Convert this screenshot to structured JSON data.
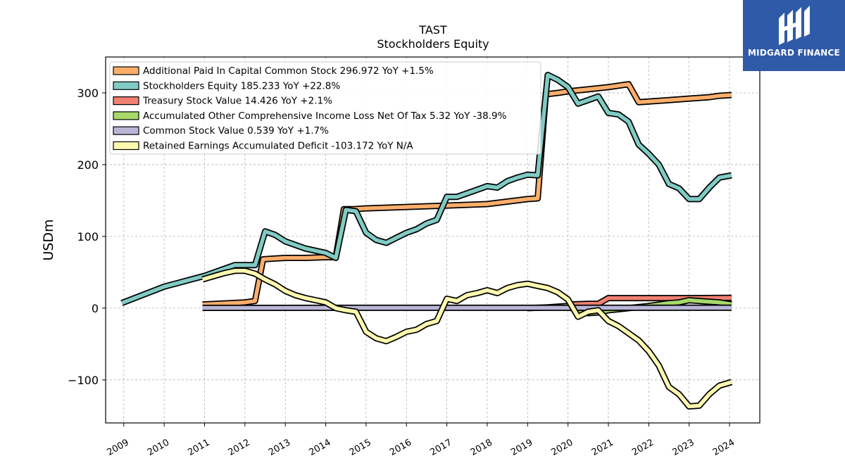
{
  "logo": {
    "text": "MIDGARD FINANCE",
    "bg_color": "#2f5aa8"
  },
  "chart_data": {
    "type": "line",
    "title": "TAST",
    "subtitle": "Stockholders  Equity",
    "ylabel": "USDm",
    "xlabel": "",
    "xlim": [
      2008.55,
      2024.75
    ],
    "ylim": [
      -160,
      350
    ],
    "x_ticks": [
      "2009",
      "2010",
      "2011",
      "2012",
      "2013",
      "2014",
      "2015",
      "2016",
      "2017",
      "2018",
      "2019",
      "2020",
      "2021",
      "2022",
      "2023",
      "2024"
    ],
    "y_ticks": [
      -100,
      0,
      100,
      200,
      300
    ],
    "grid": true,
    "legend_position": "top-left",
    "series": [
      {
        "name": "Additional Paid In Capital Common Stock",
        "legend": "Additional Paid In Capital Common Stock  296.972 YoY +1.5%",
        "color": "#fdae6b",
        "x": [
          2010.95,
          2012.0,
          2012.25,
          2012.45,
          2012.7,
          2013.0,
          2013.5,
          2014.0,
          2014.25,
          2014.45,
          2014.7,
          2015.0,
          2016.0,
          2017.0,
          2018.0,
          2019.0,
          2019.25,
          2019.45,
          2019.75,
          2020.0,
          2020.5,
          2021.0,
          2021.5,
          2021.75,
          2022.0,
          2022.5,
          2023.0,
          2023.5,
          2023.75,
          2024.05
        ],
        "y": [
          5,
          8,
          10,
          68,
          69,
          70,
          70,
          71,
          71,
          138,
          138,
          139,
          141,
          143,
          145,
          152,
          153,
          298,
          300,
          302,
          305,
          308,
          312,
          287,
          288,
          290,
          292,
          294,
          296,
          297
        ]
      },
      {
        "name": "Stockholders Equity",
        "legend": "Stockholders Equity  185.233 YoY +22.8%",
        "color": "#80cbc4",
        "x": [
          2008.95,
          2010.0,
          2011.0,
          2011.5,
          2011.75,
          2012.0,
          2012.25,
          2012.5,
          2012.75,
          2013.0,
          2013.25,
          2013.5,
          2013.75,
          2014.0,
          2014.25,
          2014.5,
          2014.75,
          2015.0,
          2015.25,
          2015.5,
          2015.75,
          2016.0,
          2016.25,
          2016.5,
          2016.75,
          2017.0,
          2017.25,
          2017.5,
          2017.75,
          2018.0,
          2018.25,
          2018.5,
          2018.75,
          2019.0,
          2019.25,
          2019.5,
          2019.75,
          2020.0,
          2020.25,
          2020.5,
          2020.75,
          2021.0,
          2021.25,
          2021.5,
          2021.75,
          2022.0,
          2022.25,
          2022.5,
          2022.75,
          2023.0,
          2023.25,
          2023.5,
          2023.75,
          2024.05
        ],
        "y": [
          7,
          30,
          45,
          55,
          60,
          60,
          60,
          107,
          102,
          93,
          88,
          83,
          80,
          77,
          70,
          137,
          135,
          105,
          95,
          91,
          98,
          105,
          110,
          118,
          123,
          155,
          155,
          160,
          165,
          170,
          168,
          177,
          182,
          186,
          185,
          325,
          318,
          308,
          285,
          290,
          295,
          272,
          270,
          260,
          228,
          215,
          200,
          173,
          167,
          152,
          152,
          168,
          182,
          185
        ]
      },
      {
        "name": "Treasury Stock Value",
        "legend": "Treasury Stock Value  14.426 YoY +2.1%",
        "color": "#f28071",
        "x": [
          2020.0,
          2020.5,
          2020.75,
          2021.0,
          2022.0,
          2023.0,
          2024.05
        ],
        "y": [
          5,
          6,
          6,
          14,
          14,
          14,
          14.4
        ]
      },
      {
        "name": "Accumulated Other Comprehensive Income Loss Net Of Tax",
        "legend": "Accumulated Other Comprehensive Income Loss Net Of Tax  5.32 YoY -38.9%",
        "color": "#a6d96a",
        "x": [
          2019.0,
          2019.5,
          2020.0,
          2020.25,
          2020.5,
          2020.75,
          2021.0,
          2021.5,
          2022.0,
          2022.5,
          2022.75,
          2023.0,
          2023.25,
          2023.5,
          2023.75,
          2024.05
        ],
        "y": [
          0,
          1,
          3,
          -5,
          -7,
          -6,
          -3,
          0,
          3,
          7,
          8,
          11,
          10,
          9,
          8,
          5.3
        ]
      },
      {
        "name": "Common Stock Value",
        "legend": "Common Stock Value  0.539 YoY +1.7%",
        "color": "#b9b5d6",
        "x": [
          2010.95,
          2015.0,
          2020.0,
          2024.05
        ],
        "y": [
          0.4,
          0.45,
          0.5,
          0.54
        ]
      },
      {
        "name": "Retained Earnings Accumulated Deficit",
        "legend": "Retained Earnings Accumulated Deficit  -103.172 YoY N/A",
        "color": "#fff9b0",
        "x": [
          2010.95,
          2011.25,
          2011.5,
          2011.75,
          2012.0,
          2012.25,
          2012.5,
          2012.75,
          2013.0,
          2013.25,
          2013.5,
          2013.75,
          2014.0,
          2014.25,
          2014.5,
          2014.75,
          2015.0,
          2015.25,
          2015.5,
          2015.75,
          2016.0,
          2016.25,
          2016.5,
          2016.75,
          2017.0,
          2017.25,
          2017.5,
          2017.75,
          2018.0,
          2018.25,
          2018.5,
          2018.75,
          2019.0,
          2019.25,
          2019.5,
          2019.75,
          2020.0,
          2020.25,
          2020.5,
          2020.75,
          2021.0,
          2021.25,
          2021.5,
          2021.75,
          2022.0,
          2022.25,
          2022.5,
          2022.75,
          2023.0,
          2023.25,
          2023.5,
          2023.75,
          2024.05
        ],
        "y": [
          40,
          45,
          49,
          52,
          52,
          48,
          40,
          33,
          24,
          18,
          14,
          11,
          8,
          0,
          -3,
          -5,
          -33,
          -42,
          -46,
          -40,
          -33,
          -30,
          -22,
          -18,
          13,
          10,
          18,
          21,
          25,
          21,
          28,
          32,
          34,
          31,
          28,
          22,
          12,
          -12,
          -5,
          -3,
          -18,
          -25,
          -35,
          -45,
          -60,
          -80,
          -110,
          -120,
          -137,
          -136,
          -120,
          -108,
          -103
        ]
      }
    ]
  }
}
